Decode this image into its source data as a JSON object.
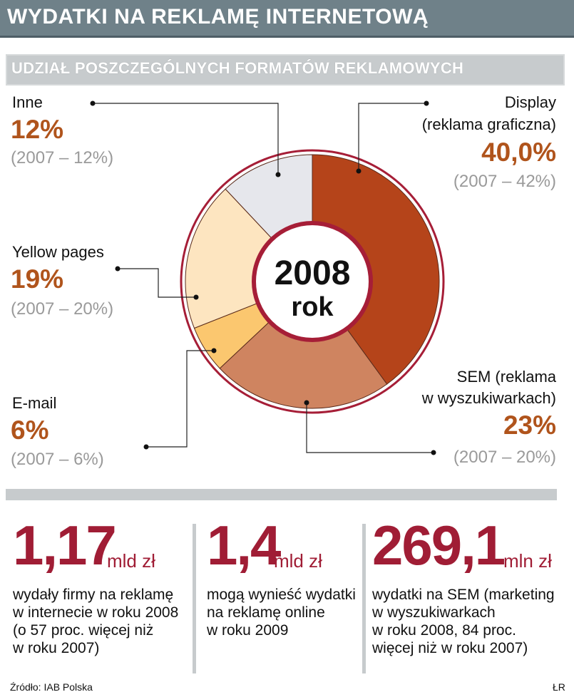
{
  "title": "WYDATKI NA REKLAMĘ INTERNETOWĄ",
  "chart_data": {
    "type": "pie",
    "title": "UDZIAŁ POSZCZEGÓLNYCH FORMATÓW REKLAMOWYCH",
    "center_label": {
      "year": "2008",
      "word": "rok"
    },
    "slices": [
      {
        "name_lines": [
          "Display",
          "(reklama graficzna)"
        ],
        "value": 40.0,
        "value_label": "40,0%",
        "prev_label": "(2007 – 42%)",
        "color": "#b5441a"
      },
      {
        "name_lines": [
          "SEM (reklama",
          "w wyszukiwarkach)"
        ],
        "value": 23,
        "value_label": "23%",
        "prev_label": "(2007 – 20%)",
        "color": "#cf8460"
      },
      {
        "name_lines": [
          "E-mail"
        ],
        "value": 6,
        "value_label": "6%",
        "prev_label": "(2007 – 6%)",
        "color": "#fbc76f"
      },
      {
        "name_lines": [
          "Yellow pages"
        ],
        "value": 19,
        "value_label": "19%",
        "prev_label": "(2007 – 20%)",
        "color": "#fde5c0"
      },
      {
        "name_lines": [
          "Inne"
        ],
        "value": 12,
        "value_label": "12%",
        "prev_label": "(2007 – 12%)",
        "color": "#e6e7ec"
      }
    ],
    "ring_color": "#a61e37"
  },
  "stats": [
    {
      "value": "1,17",
      "unit": "mld zł",
      "desc_lines": [
        "wydały firmy na reklamę",
        "w internecie w roku 2008",
        "(o 57 proc. więcej niż",
        "w roku 2007)"
      ]
    },
    {
      "value": "1,4",
      "unit": "mld zł",
      "desc_lines": [
        "mogą wynieść wydatki",
        "na reklamę online",
        "w roku 2009"
      ]
    },
    {
      "value": "269,1",
      "unit": "mln zł",
      "desc_lines": [
        "wydatki na SEM (marketing",
        "w wyszukiwarkach",
        "w roku 2008,  84 proc.",
        "więcej niż w roku 2007)"
      ]
    }
  ],
  "source": "Źródło: IAB Polska",
  "author": "ŁR"
}
